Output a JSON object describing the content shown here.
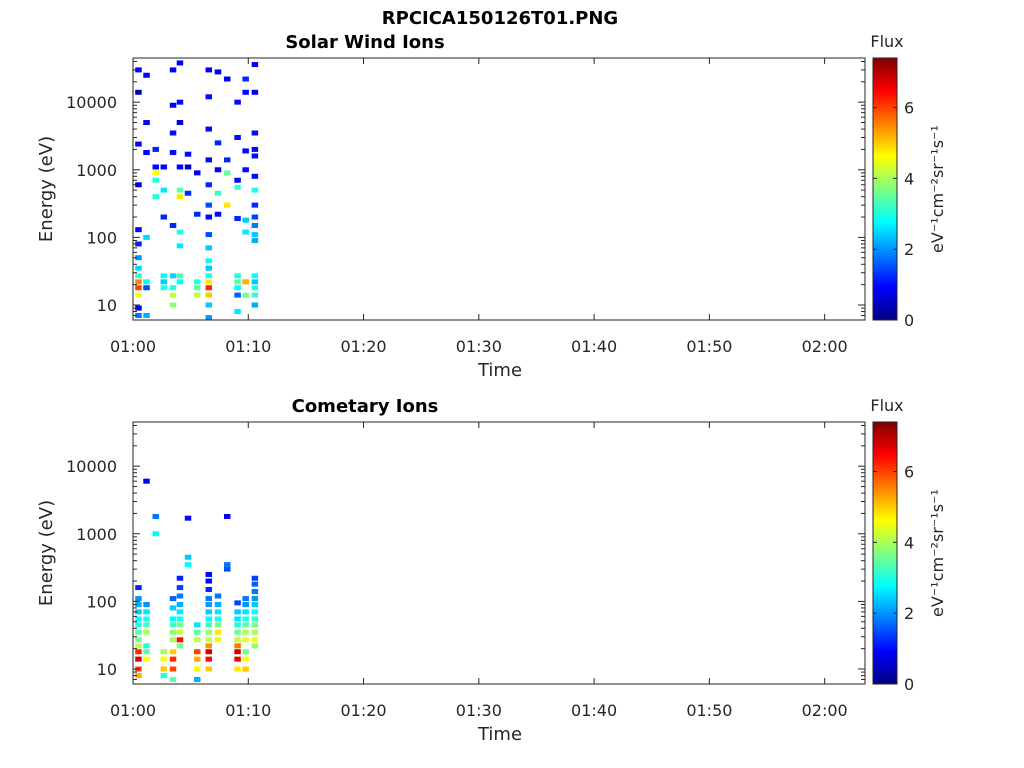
{
  "figure": {
    "title": "RPCICA150126T01.PNG",
    "colormap": "jet",
    "colormap_stops": [
      "#00007f",
      "#0000ff",
      "#007fff",
      "#00ffff",
      "#7fff7f",
      "#ffff00",
      "#ff7f00",
      "#ff0000",
      "#7f0000"
    ]
  },
  "chart_data": [
    {
      "type": "heatmap",
      "title": "Solar Wind Ions",
      "xlabel": "Time",
      "ylabel": "Energy (eV)",
      "x_ticks": [
        "01:00",
        "01:10",
        "01:20",
        "01:30",
        "01:40",
        "01:50",
        "02:00"
      ],
      "xlim": [
        0,
        63.5
      ],
      "y_scale": "log",
      "ylim": [
        6,
        45000
      ],
      "y_ticks": [
        {
          "value": 10,
          "label": "10"
        },
        {
          "value": 100,
          "label": "100"
        },
        {
          "value": 1000,
          "label": "1000"
        },
        {
          "value": 10000,
          "label": "10000"
        }
      ],
      "colorbar": {
        "title": "Flux",
        "label": "eV⁻¹cm⁻²sr⁻¹s⁻¹",
        "range": [
          0,
          7.4
        ],
        "ticks": [
          "0",
          "2",
          "4",
          "6"
        ]
      },
      "cells": [
        [
          0.3,
          7,
          1.8
        ],
        [
          0.3,
          9,
          0.8
        ],
        [
          0.3,
          14,
          4.5
        ],
        [
          0.3,
          18,
          6.0
        ],
        [
          0.3,
          22,
          5.5
        ],
        [
          0.3,
          27,
          3.2
        ],
        [
          0.3,
          35,
          2.5
        ],
        [
          0.3,
          50,
          2.0
        ],
        [
          0.3,
          80,
          1.2
        ],
        [
          0.3,
          130,
          0.9
        ],
        [
          0.3,
          600,
          0.8
        ],
        [
          0.3,
          2400,
          0.9
        ],
        [
          0.3,
          14000,
          0.4
        ],
        [
          0.3,
          30000,
          0.9
        ],
        [
          1.0,
          7,
          2.2
        ],
        [
          1.0,
          18,
          1.5
        ],
        [
          1.0,
          22,
          2.8
        ],
        [
          1.0,
          100,
          2.5
        ],
        [
          1.0,
          1800,
          0.9
        ],
        [
          1.0,
          5000,
          0.8
        ],
        [
          1.0,
          25000,
          0.9
        ],
        [
          1.8,
          700,
          3.0
        ],
        [
          1.8,
          900,
          4.6
        ],
        [
          1.8,
          400,
          3.0
        ],
        [
          1.8,
          2000,
          1.2
        ],
        [
          1.8,
          1100,
          1.0
        ],
        [
          2.5,
          18,
          3.0
        ],
        [
          2.5,
          22,
          2.4
        ],
        [
          2.5,
          27,
          2.8
        ],
        [
          2.5,
          500,
          2.6
        ],
        [
          2.5,
          200,
          1.2
        ],
        [
          2.5,
          1100,
          1.0
        ],
        [
          3.3,
          10,
          3.8
        ],
        [
          3.3,
          14,
          4.2
        ],
        [
          3.3,
          18,
          3.0
        ],
        [
          3.3,
          27,
          2.5
        ],
        [
          3.3,
          150,
          1.2
        ],
        [
          3.3,
          1800,
          1.0
        ],
        [
          3.3,
          3500,
          1.0
        ],
        [
          3.3,
          9000,
          0.8
        ],
        [
          3.3,
          30000,
          0.9
        ],
        [
          3.9,
          22,
          2.8
        ],
        [
          3.9,
          27,
          3.4
        ],
        [
          3.9,
          75,
          2.6
        ],
        [
          3.9,
          120,
          3.0
        ],
        [
          3.9,
          500,
          3.4
        ],
        [
          3.9,
          400,
          4.8
        ],
        [
          3.9,
          1100,
          1.0
        ],
        [
          3.9,
          5000,
          0.6
        ],
        [
          3.9,
          10000,
          1.0
        ],
        [
          3.9,
          38000,
          0.9
        ],
        [
          4.6,
          450,
          1.2
        ],
        [
          4.6,
          1700,
          1.0
        ],
        [
          4.6,
          1100,
          0.6
        ],
        [
          5.4,
          14,
          4.2
        ],
        [
          5.4,
          18,
          3.4
        ],
        [
          5.4,
          22,
          3.0
        ],
        [
          5.4,
          220,
          1.2
        ],
        [
          5.4,
          900,
          0.9
        ],
        [
          6.4,
          6.5,
          2.0
        ],
        [
          6.4,
          10,
          2.4
        ],
        [
          6.4,
          14,
          5.0
        ],
        [
          6.4,
          18,
          6.2
        ],
        [
          6.4,
          22,
          4.8
        ],
        [
          6.4,
          27,
          3.0
        ],
        [
          6.4,
          35,
          2.4
        ],
        [
          6.4,
          45,
          2.8
        ],
        [
          6.4,
          70,
          2.4
        ],
        [
          6.4,
          110,
          1.5
        ],
        [
          6.4,
          200,
          1.0
        ],
        [
          6.4,
          300,
          1.5
        ],
        [
          6.4,
          600,
          1.2
        ],
        [
          6.4,
          1400,
          1.0
        ],
        [
          6.4,
          4000,
          1.0
        ],
        [
          6.4,
          12000,
          1.0
        ],
        [
          6.4,
          30000,
          0.9
        ],
        [
          7.2,
          220,
          1.0
        ],
        [
          7.2,
          450,
          3.2
        ],
        [
          7.2,
          1000,
          0.9
        ],
        [
          7.2,
          2500,
          1.2
        ],
        [
          7.2,
          28000,
          0.8
        ],
        [
          8.0,
          300,
          4.8
        ],
        [
          8.0,
          900,
          3.5
        ],
        [
          8.0,
          1400,
          1.2
        ],
        [
          8.0,
          22000,
          0.9
        ],
        [
          8.9,
          8,
          2.6
        ],
        [
          8.9,
          14,
          1.6
        ],
        [
          8.9,
          18,
          2.8
        ],
        [
          8.9,
          22,
          3.4
        ],
        [
          8.9,
          27,
          3.0
        ],
        [
          8.9,
          190,
          1.2
        ],
        [
          8.9,
          550,
          3.2
        ],
        [
          8.9,
          700,
          1.0
        ],
        [
          8.9,
          3000,
          1.0
        ],
        [
          8.9,
          10000,
          1.0
        ],
        [
          9.6,
          14,
          3.6
        ],
        [
          9.6,
          22,
          5.2
        ],
        [
          9.6,
          120,
          2.6
        ],
        [
          9.6,
          180,
          2.4
        ],
        [
          9.6,
          1000,
          1.0
        ],
        [
          9.6,
          1900,
          1.0
        ],
        [
          9.6,
          14000,
          1.0
        ],
        [
          9.6,
          22000,
          1.2
        ],
        [
          10.4,
          10,
          2.2
        ],
        [
          10.4,
          14,
          3.2
        ],
        [
          10.4,
          18,
          3.0
        ],
        [
          10.4,
          22,
          2.4
        ],
        [
          10.4,
          27,
          2.8
        ],
        [
          10.4,
          90,
          2.2
        ],
        [
          10.4,
          110,
          2.4
        ],
        [
          10.4,
          150,
          1.8
        ],
        [
          10.4,
          200,
          1.4
        ],
        [
          10.4,
          300,
          1.2
        ],
        [
          10.4,
          500,
          3.0
        ],
        [
          10.4,
          800,
          1.0
        ],
        [
          10.4,
          1600,
          1.0
        ],
        [
          10.4,
          2000,
          1.0
        ],
        [
          10.4,
          3500,
          1.0
        ],
        [
          10.4,
          14000,
          0.9
        ],
        [
          10.4,
          36000,
          0.9
        ]
      ]
    },
    {
      "type": "heatmap",
      "title": "Cometary Ions",
      "xlabel": "Time",
      "ylabel": "Energy (eV)",
      "x_ticks": [
        "01:00",
        "01:10",
        "01:20",
        "01:30",
        "01:40",
        "01:50",
        "02:00"
      ],
      "xlim": [
        0,
        63.5
      ],
      "y_scale": "log",
      "ylim": [
        6,
        45000
      ],
      "y_ticks": [
        {
          "value": 10,
          "label": "10"
        },
        {
          "value": 100,
          "label": "100"
        },
        {
          "value": 1000,
          "label": "1000"
        },
        {
          "value": 10000,
          "label": "10000"
        }
      ],
      "colorbar": {
        "title": "Flux",
        "label": "eV⁻¹cm⁻²sr⁻¹s⁻¹",
        "range": [
          0,
          7.4
        ],
        "ticks": [
          "0",
          "2",
          "4",
          "6"
        ]
      },
      "cells": [
        [
          0.3,
          8,
          5.2
        ],
        [
          0.3,
          10,
          6.0
        ],
        [
          0.3,
          14,
          6.8
        ],
        [
          0.3,
          18,
          6.2
        ],
        [
          0.3,
          22,
          4.2
        ],
        [
          0.3,
          27,
          3.6
        ],
        [
          0.3,
          35,
          3.4
        ],
        [
          0.3,
          45,
          3.0
        ],
        [
          0.3,
          55,
          2.8
        ],
        [
          0.3,
          70,
          2.4
        ],
        [
          0.3,
          90,
          2.2
        ],
        [
          0.3,
          110,
          2.0
        ],
        [
          0.3,
          160,
          1.2
        ],
        [
          1.0,
          14,
          4.6
        ],
        [
          1.0,
          18,
          3.4
        ],
        [
          1.0,
          22,
          3.0
        ],
        [
          1.0,
          35,
          4.0
        ],
        [
          1.0,
          45,
          3.2
        ],
        [
          1.0,
          55,
          3.0
        ],
        [
          1.0,
          70,
          2.6
        ],
        [
          1.0,
          90,
          2.0
        ],
        [
          1.0,
          6000,
          0.9
        ],
        [
          1.8,
          1000,
          2.8
        ],
        [
          1.8,
          1800,
          1.8
        ],
        [
          2.5,
          8,
          3.0
        ],
        [
          2.5,
          10,
          5.0
        ],
        [
          2.5,
          14,
          4.6
        ],
        [
          2.5,
          18,
          4.0
        ],
        [
          3.3,
          7,
          3.4
        ],
        [
          3.3,
          10,
          6.0
        ],
        [
          3.3,
          14,
          6.2
        ],
        [
          3.3,
          18,
          5.0
        ],
        [
          3.3,
          27,
          4.0
        ],
        [
          3.3,
          35,
          3.8
        ],
        [
          3.3,
          45,
          3.2
        ],
        [
          3.3,
          55,
          2.8
        ],
        [
          3.3,
          80,
          2.4
        ],
        [
          3.3,
          110,
          1.6
        ],
        [
          3.9,
          22,
          3.6
        ],
        [
          3.9,
          27,
          6.4
        ],
        [
          3.9,
          35,
          4.2
        ],
        [
          3.9,
          45,
          3.6
        ],
        [
          3.9,
          55,
          3.0
        ],
        [
          3.9,
          70,
          2.6
        ],
        [
          3.9,
          90,
          2.2
        ],
        [
          3.9,
          120,
          1.8
        ],
        [
          3.9,
          160,
          1.4
        ],
        [
          3.9,
          220,
          1.2
        ],
        [
          4.6,
          350,
          2.8
        ],
        [
          4.6,
          450,
          2.4
        ],
        [
          4.6,
          1700,
          1.0
        ],
        [
          5.4,
          7,
          2.2
        ],
        [
          5.4,
          10,
          4.6
        ],
        [
          5.4,
          14,
          5.2
        ],
        [
          5.4,
          18,
          6.0
        ],
        [
          5.4,
          27,
          4.2
        ],
        [
          5.4,
          35,
          3.4
        ],
        [
          5.4,
          45,
          2.6
        ],
        [
          6.4,
          10,
          5.0
        ],
        [
          6.4,
          14,
          6.4
        ],
        [
          6.4,
          18,
          6.8
        ],
        [
          6.4,
          22,
          5.4
        ],
        [
          6.4,
          27,
          4.2
        ],
        [
          6.4,
          35,
          3.8
        ],
        [
          6.4,
          45,
          3.2
        ],
        [
          6.4,
          55,
          2.8
        ],
        [
          6.4,
          70,
          2.4
        ],
        [
          6.4,
          90,
          2.0
        ],
        [
          6.4,
          110,
          1.8
        ],
        [
          6.4,
          150,
          1.2
        ],
        [
          6.4,
          200,
          1.0
        ],
        [
          6.4,
          250,
          1.0
        ],
        [
          7.2,
          27,
          4.4
        ],
        [
          7.2,
          35,
          4.8
        ],
        [
          7.2,
          45,
          3.6
        ],
        [
          7.2,
          55,
          3.0
        ],
        [
          7.2,
          70,
          2.6
        ],
        [
          7.2,
          90,
          2.2
        ],
        [
          7.2,
          120,
          1.8
        ],
        [
          8.0,
          300,
          1.5
        ],
        [
          8.0,
          350,
          1.8
        ],
        [
          8.0,
          1800,
          0.9
        ],
        [
          8.9,
          10,
          4.8
        ],
        [
          8.9,
          14,
          6.6
        ],
        [
          8.9,
          18,
          6.8
        ],
        [
          8.9,
          22,
          5.6
        ],
        [
          8.9,
          27,
          4.2
        ],
        [
          8.9,
          35,
          3.6
        ],
        [
          8.9,
          45,
          3.0
        ],
        [
          8.9,
          55,
          2.6
        ],
        [
          8.9,
          70,
          2.4
        ],
        [
          8.9,
          95,
          1.4
        ],
        [
          9.6,
          10,
          5.0
        ],
        [
          9.6,
          14,
          4.6
        ],
        [
          9.6,
          18,
          3.6
        ],
        [
          9.6,
          27,
          4.4
        ],
        [
          9.6,
          35,
          4.0
        ],
        [
          9.6,
          45,
          3.4
        ],
        [
          9.6,
          55,
          3.0
        ],
        [
          9.6,
          70,
          2.6
        ],
        [
          9.6,
          90,
          2.0
        ],
        [
          9.6,
          110,
          1.8
        ],
        [
          10.4,
          22,
          3.8
        ],
        [
          10.4,
          27,
          4.6
        ],
        [
          10.4,
          35,
          4.0
        ],
        [
          10.4,
          45,
          3.6
        ],
        [
          10.4,
          55,
          3.2
        ],
        [
          10.4,
          70,
          2.8
        ],
        [
          10.4,
          90,
          2.4
        ],
        [
          10.4,
          110,
          2.0
        ],
        [
          10.4,
          140,
          1.8
        ],
        [
          10.4,
          180,
          1.6
        ],
        [
          10.4,
          220,
          1.4
        ]
      ]
    }
  ]
}
